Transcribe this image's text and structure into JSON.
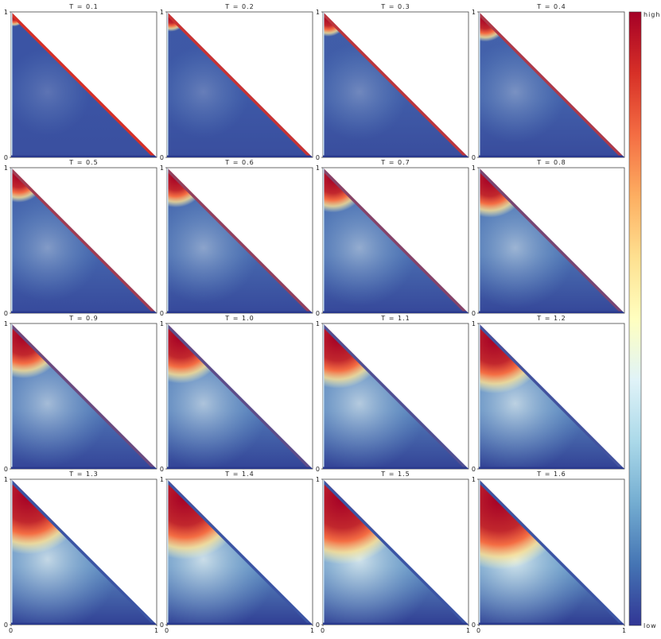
{
  "chart_data": [
    {
      "type": "heatmap",
      "title": "T = 0.1",
      "xlim": [
        0,
        1
      ],
      "ylim": [
        0,
        1
      ],
      "yticks": [
        0,
        1
      ]
    },
    {
      "type": "heatmap",
      "title": "T = 0.2",
      "xlim": [
        0,
        1
      ],
      "ylim": [
        0,
        1
      ],
      "yticks": [
        0,
        1
      ]
    },
    {
      "type": "heatmap",
      "title": "T = 0.3",
      "xlim": [
        0,
        1
      ],
      "ylim": [
        0,
        1
      ],
      "yticks": [
        0,
        1
      ]
    },
    {
      "type": "heatmap",
      "title": "T = 0.4",
      "xlim": [
        0,
        1
      ],
      "ylim": [
        0,
        1
      ],
      "yticks": [
        0,
        1
      ]
    },
    {
      "type": "heatmap",
      "title": "T = 0.5",
      "xlim": [
        0,
        1
      ],
      "ylim": [
        0,
        1
      ],
      "yticks": [
        0,
        1
      ]
    },
    {
      "type": "heatmap",
      "title": "T = 0.6",
      "xlim": [
        0,
        1
      ],
      "ylim": [
        0,
        1
      ],
      "yticks": [
        0,
        1
      ]
    },
    {
      "type": "heatmap",
      "title": "T = 0.7",
      "xlim": [
        0,
        1
      ],
      "ylim": [
        0,
        1
      ],
      "yticks": [
        0,
        1
      ]
    },
    {
      "type": "heatmap",
      "title": "T = 0.8",
      "xlim": [
        0,
        1
      ],
      "ylim": [
        0,
        1
      ],
      "yticks": [
        0,
        1
      ]
    },
    {
      "type": "heatmap",
      "title": "T = 0.9",
      "xlim": [
        0,
        1
      ],
      "ylim": [
        0,
        1
      ],
      "yticks": [
        0,
        1
      ]
    },
    {
      "type": "heatmap",
      "title": "T = 1.0",
      "xlim": [
        0,
        1
      ],
      "ylim": [
        0,
        1
      ],
      "yticks": [
        0,
        1
      ]
    },
    {
      "type": "heatmap",
      "title": "T = 1.1",
      "xlim": [
        0,
        1
      ],
      "ylim": [
        0,
        1
      ],
      "yticks": [
        0,
        1
      ]
    },
    {
      "type": "heatmap",
      "title": "T = 1.2",
      "xlim": [
        0,
        1
      ],
      "ylim": [
        0,
        1
      ],
      "yticks": [
        0,
        1
      ]
    },
    {
      "type": "heatmap",
      "title": "T = 1.3",
      "xlim": [
        0,
        1
      ],
      "ylim": [
        0,
        1
      ],
      "xticks": [
        0,
        1
      ],
      "yticks": [
        0,
        1
      ]
    },
    {
      "type": "heatmap",
      "title": "T = 1.4",
      "xlim": [
        0,
        1
      ],
      "ylim": [
        0,
        1
      ],
      "xticks": [
        0,
        1
      ],
      "yticks": [
        0,
        1
      ]
    },
    {
      "type": "heatmap",
      "title": "T = 1.5",
      "xlim": [
        0,
        1
      ],
      "ylim": [
        0,
        1
      ],
      "xticks": [
        0,
        1
      ],
      "yticks": [
        0,
        1
      ]
    },
    {
      "type": "heatmap",
      "title": "T = 1.6",
      "xlim": [
        0,
        1
      ],
      "ylim": [
        0,
        1
      ],
      "xticks": [
        0,
        1
      ],
      "yticks": [
        0,
        1
      ]
    }
  ],
  "colorbar": {
    "high_label": "high",
    "low_label": "low",
    "colormap": [
      "#a50026",
      "#d73027",
      "#f46d43",
      "#fdae61",
      "#fee090",
      "#ffffbf",
      "#e0f3f8",
      "#abd9e9",
      "#74add1",
      "#4575b4",
      "#313695"
    ]
  }
}
